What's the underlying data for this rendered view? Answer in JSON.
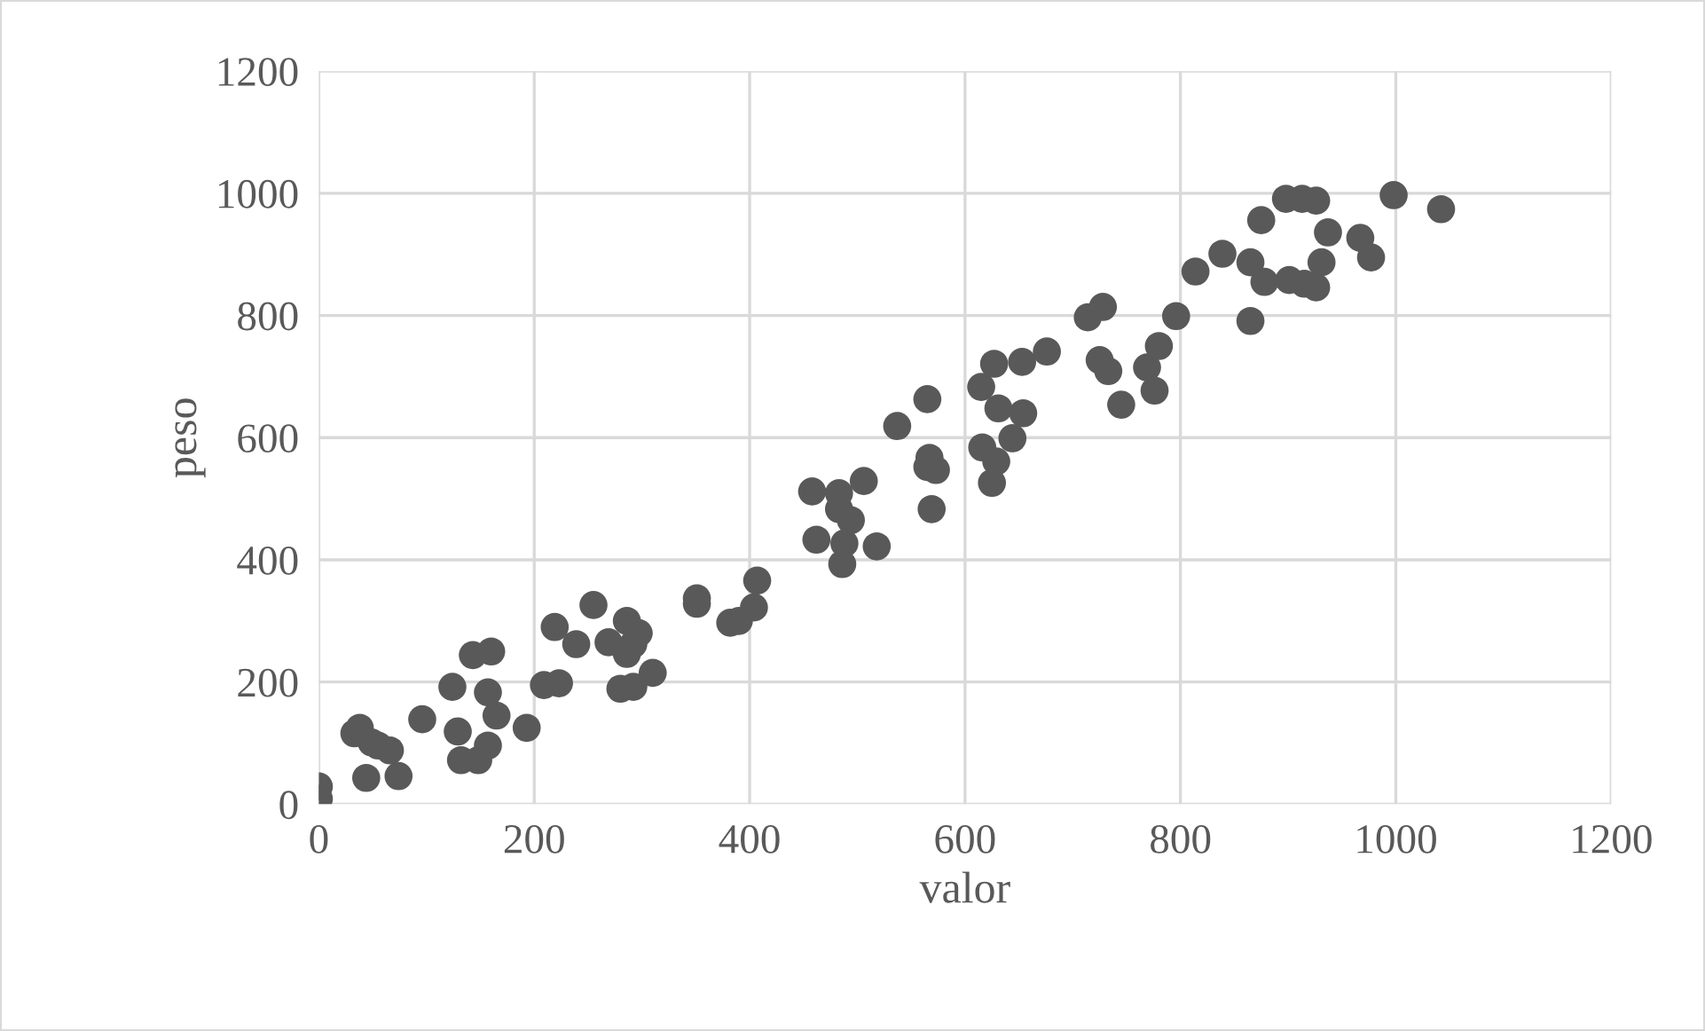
{
  "chart_data": {
    "type": "scatter",
    "xlabel": "valor",
    "ylabel": "peso",
    "marker": "circle",
    "grid": true,
    "xlim": [
      0,
      1200
    ],
    "xticks": [
      0,
      200,
      400,
      600,
      800,
      1000,
      1200
    ],
    "ylim": [
      0,
      1200
    ],
    "yticks": [
      0,
      200,
      400,
      600,
      800,
      1000,
      1200
    ],
    "series": [
      {
        "color": "#595959",
        "x": [
          0,
          0,
          44,
          74,
          33,
          38,
          55,
          66,
          49,
          96,
          124,
          129,
          132,
          148,
          157,
          157,
          165,
          143,
          160,
          193,
          209,
          223,
          219,
          239,
          255,
          269,
          286,
          292,
          297,
          286,
          280,
          292,
          310,
          351,
          351,
          382,
          390,
          404,
          407,
          458,
          483,
          506,
          483,
          494,
          462,
          488,
          486,
          518,
          537,
          565,
          567,
          573,
          569,
          565,
          615,
          627,
          653,
          676,
          631,
          654,
          644,
          616,
          629,
          625,
          714,
          728,
          725,
          733,
          745,
          769,
          780,
          776,
          796,
          814,
          839,
          865,
          878,
          865,
          875,
          898,
          913,
          926,
          937,
          931,
          901,
          915,
          926,
          967,
          977,
          998,
          1042
        ],
        "values": [
          29,
          9,
          43,
          46,
          116,
          125,
          96,
          88,
          101,
          139,
          192,
          119,
          72,
          72,
          96,
          183,
          145,
          244,
          250,
          125,
          195,
          198,
          290,
          262,
          326,
          265,
          300,
          262,
          280,
          246,
          189,
          192,
          215,
          337,
          328,
          297,
          300,
          322,
          366,
          512,
          509,
          529,
          483,
          465,
          433,
          427,
          393,
          422,
          619,
          663,
          567,
          547,
          483,
          552,
          683,
          721,
          724,
          741,
          648,
          640,
          599,
          584,
          561,
          526,
          797,
          814,
          727,
          709,
          654,
          715,
          750,
          677,
          799,
          872,
          901,
          887,
          855,
          791,
          956,
          991,
          991,
          988,
          936,
          887,
          858,
          852,
          846,
          927,
          895,
          997,
          974
        ]
      }
    ]
  }
}
